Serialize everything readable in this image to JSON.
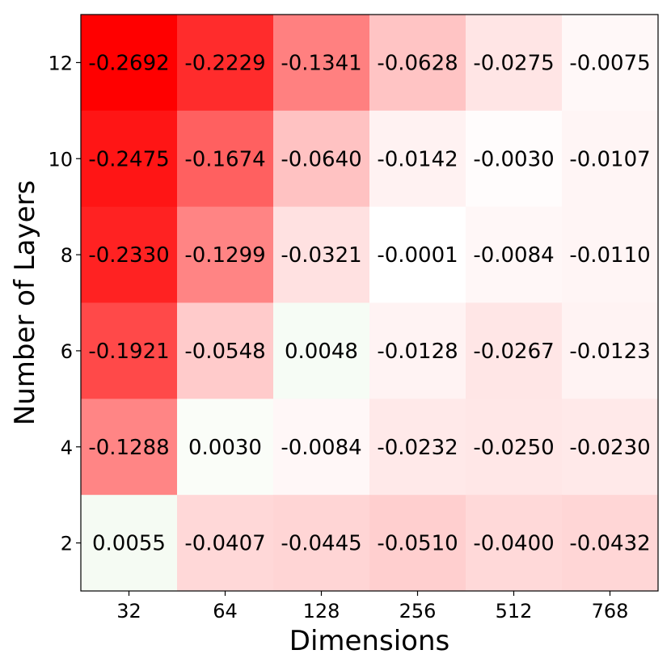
{
  "chart_data": {
    "type": "heatmap",
    "xlabel": "Dimensions",
    "ylabel": "Number of Layers",
    "x_categories": [
      "32",
      "64",
      "128",
      "256",
      "512",
      "768"
    ],
    "y_categories": [
      "12",
      "10",
      "8",
      "6",
      "4",
      "2"
    ],
    "values": [
      [
        -0.2692,
        -0.2229,
        -0.1341,
        -0.0628,
        -0.0275,
        -0.0075
      ],
      [
        -0.2475,
        -0.1674,
        -0.064,
        -0.0142,
        -0.003,
        -0.0107
      ],
      [
        -0.233,
        -0.1299,
        -0.0321,
        -0.0001,
        -0.0084,
        -0.011
      ],
      [
        -0.1921,
        -0.0548,
        0.0048,
        -0.0128,
        -0.0267,
        -0.0123
      ],
      [
        -0.1288,
        0.003,
        -0.0084,
        -0.0232,
        -0.025,
        -0.023
      ],
      [
        0.0055,
        -0.0407,
        -0.0445,
        -0.051,
        -0.04,
        -0.0432
      ]
    ],
    "value_labels": [
      [
        "-0.2692",
        "-0.2229",
        "-0.1341",
        "-0.0628",
        "-0.0275",
        "-0.0075"
      ],
      [
        "-0.2475",
        "-0.1674",
        "-0.0640",
        "-0.0142",
        "-0.0030",
        "-0.0107"
      ],
      [
        "-0.2330",
        "-0.1299",
        "-0.0321",
        "-0.0001",
        "-0.0084",
        "-0.0110"
      ],
      [
        "-0.1921",
        "-0.0548",
        "0.0048",
        "-0.0128",
        "-0.0267",
        "-0.0123"
      ],
      [
        "-0.1288",
        "0.0030",
        "-0.0084",
        "-0.0232",
        "-0.0250",
        "-0.0230"
      ],
      [
        "0.0055",
        "-0.0407",
        "-0.0445",
        "-0.0510",
        "-0.0400",
        "-0.0432"
      ]
    ],
    "colormap": {
      "negative_max_color": "#ff0000",
      "neutral_color": "#ffffff",
      "positive_color": "#f5fbf3",
      "text_color": "#000000"
    },
    "grid": false,
    "legend": "none"
  }
}
